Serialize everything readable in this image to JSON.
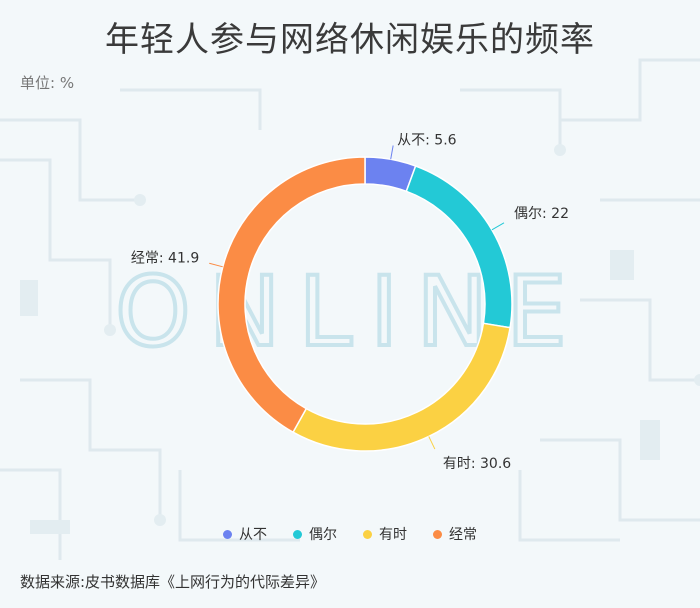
{
  "title": "年轻人参与网络休闲娱乐的频率",
  "unit_label": "单位: %",
  "source": "数据来源:皮书数据库《上网行为的代际差异》",
  "watermark": "ONLINE",
  "chart_data": {
    "type": "pie",
    "donut": true,
    "categories": [
      "从不",
      "偶尔",
      "有时",
      "经常"
    ],
    "values": [
      5.6,
      22,
      30.6,
      41.9
    ],
    "colors": [
      "#6c82f0",
      "#23c9d6",
      "#fbd143",
      "#fb8c45"
    ],
    "labels": [
      "从不: 5.6",
      "偶尔: 22",
      "有时: 30.6",
      "经常: 41.9"
    ],
    "legend_position": "bottom"
  }
}
